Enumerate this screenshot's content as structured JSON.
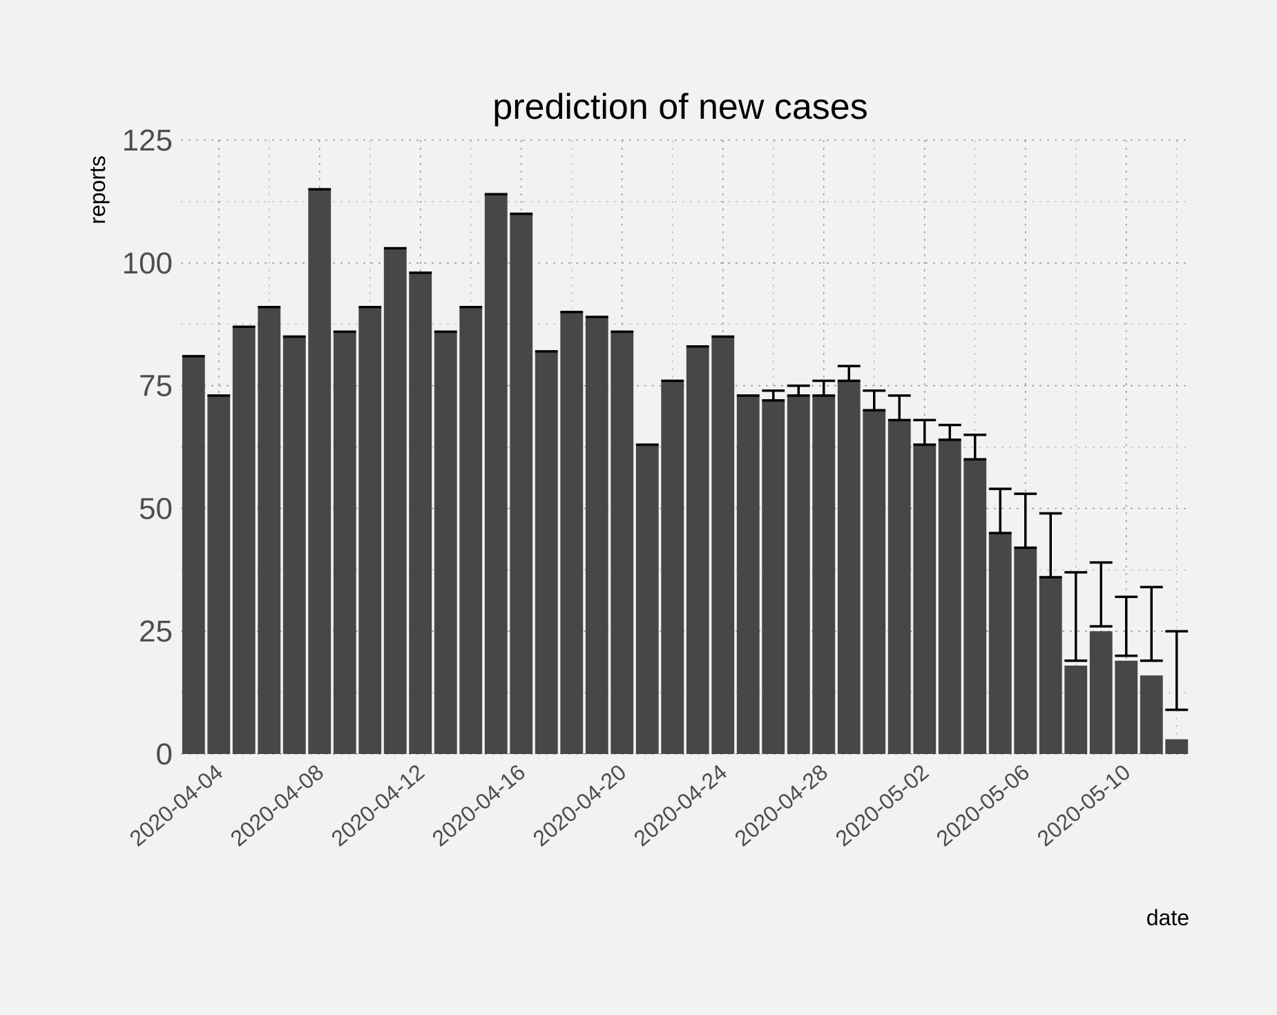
{
  "chart_data": {
    "type": "bar",
    "title": "prediction of new cases",
    "xlabel": "date",
    "ylabel": "reports",
    "ylim": [
      0,
      125
    ],
    "yticks": [
      0,
      25,
      50,
      75,
      100,
      125
    ],
    "grid": true,
    "legend": "none",
    "colors": {
      "bar": "#474747",
      "error_bar": "#000000",
      "background": "#f2f2f2",
      "grid": "#9a9a9a"
    },
    "x_tick_labels": [
      "2020-04-04",
      "2020-04-08",
      "2020-04-12",
      "2020-04-16",
      "2020-04-20",
      "2020-04-24",
      "2020-04-28",
      "2020-05-02",
      "2020-05-06",
      "2020-05-10"
    ],
    "categories": [
      "2020-04-03",
      "2020-04-04",
      "2020-04-05",
      "2020-04-06",
      "2020-04-07",
      "2020-04-08",
      "2020-04-09",
      "2020-04-10",
      "2020-04-11",
      "2020-04-12",
      "2020-04-13",
      "2020-04-14",
      "2020-04-15",
      "2020-04-16",
      "2020-04-17",
      "2020-04-18",
      "2020-04-19",
      "2020-04-20",
      "2020-04-21",
      "2020-04-22",
      "2020-04-23",
      "2020-04-24",
      "2020-04-25",
      "2020-04-26",
      "2020-04-27",
      "2020-04-28",
      "2020-04-29",
      "2020-04-30",
      "2020-05-01",
      "2020-05-02",
      "2020-05-03",
      "2020-05-04",
      "2020-05-05",
      "2020-05-06",
      "2020-05-07",
      "2020-05-08",
      "2020-05-09",
      "2020-05-10",
      "2020-05-11",
      "2020-05-12"
    ],
    "values": [
      81,
      73,
      87,
      91,
      85,
      115,
      86,
      91,
      103,
      98,
      86,
      91,
      114,
      110,
      82,
      90,
      89,
      86,
      63,
      76,
      83,
      85,
      73,
      72,
      73,
      73,
      76,
      70,
      68,
      63,
      64,
      60,
      45,
      42,
      36,
      18,
      25,
      19,
      16,
      3
    ],
    "error_lower": [
      81,
      73,
      87,
      91,
      85,
      115,
      86,
      91,
      103,
      98,
      86,
      91,
      114,
      110,
      82,
      90,
      89,
      86,
      63,
      76,
      83,
      85,
      73,
      72,
      73,
      73,
      76,
      70,
      68,
      63,
      64,
      60,
      45,
      42,
      36,
      19,
      26,
      20,
      19,
      9
    ],
    "error_upper": [
      81,
      73,
      87,
      91,
      85,
      115,
      86,
      91,
      103,
      98,
      86,
      91,
      114,
      110,
      82,
      90,
      89,
      86,
      63,
      76,
      83,
      85,
      73,
      74,
      75,
      76,
      79,
      74,
      73,
      68,
      67,
      65,
      54,
      53,
      49,
      37,
      39,
      32,
      34,
      25
    ]
  }
}
